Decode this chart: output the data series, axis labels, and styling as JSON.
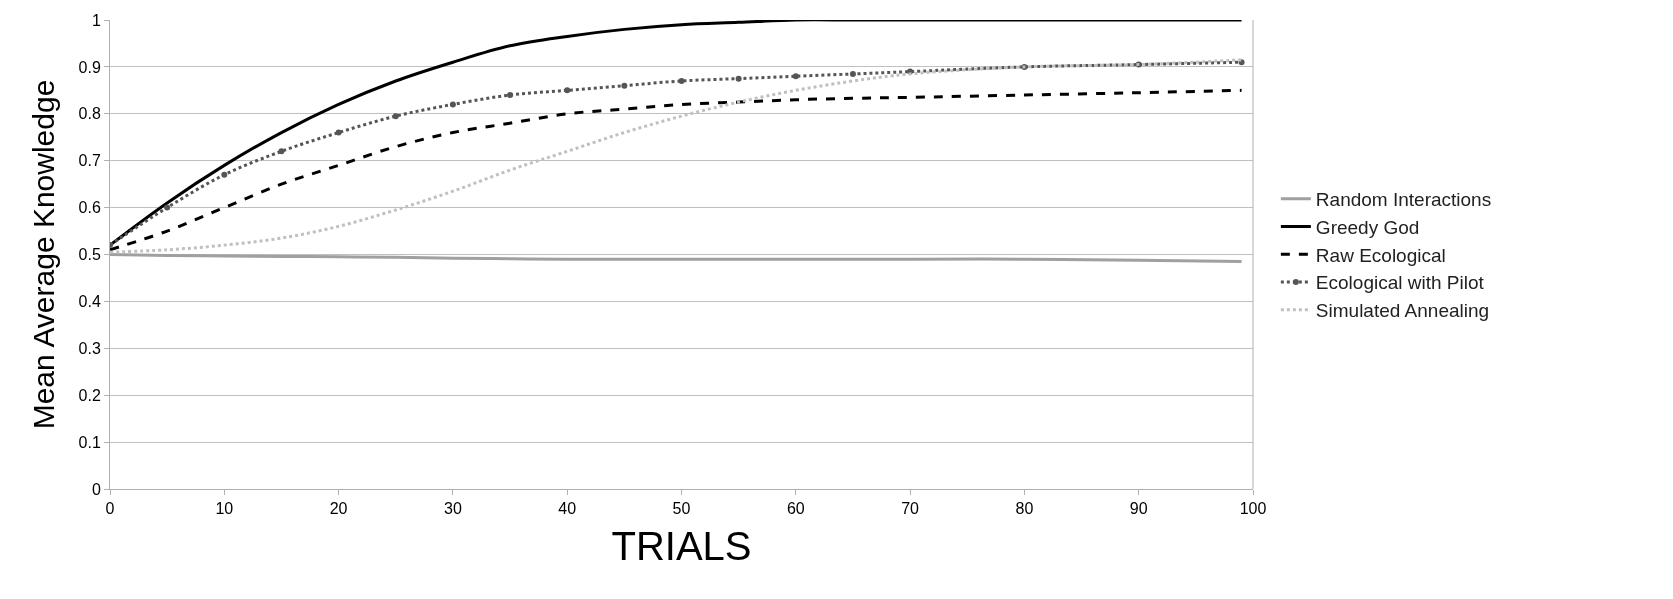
{
  "chart_data": {
    "type": "line",
    "xlabel": "TRIALS",
    "ylabel": "Mean Average Knowledge",
    "x": [
      0,
      5,
      10,
      15,
      20,
      25,
      30,
      35,
      40,
      45,
      50,
      55,
      60,
      65,
      70,
      80,
      90,
      99
    ],
    "series": [
      {
        "name": "Random Interactions",
        "color": "#a0a0a0",
        "line_style": "solid",
        "values": [
          0.5,
          0.498,
          0.497,
          0.496,
          0.495,
          0.494,
          0.492,
          0.491,
          0.49,
          0.49,
          0.49,
          0.49,
          0.49,
          0.49,
          0.49,
          0.49,
          0.488,
          0.485
        ]
      },
      {
        "name": "Greedy God",
        "color": "#000000",
        "line_style": "solid",
        "values": [
          0.52,
          0.61,
          0.69,
          0.76,
          0.82,
          0.87,
          0.91,
          0.945,
          0.965,
          0.98,
          0.99,
          0.995,
          1.0,
          1.0,
          1.0,
          1.0,
          1.0,
          1.0
        ]
      },
      {
        "name": "Raw Ecological",
        "color": "#000000",
        "line_style": "dashed",
        "values": [
          0.51,
          0.55,
          0.6,
          0.65,
          0.69,
          0.73,
          0.76,
          0.78,
          0.8,
          0.81,
          0.82,
          0.825,
          0.83,
          0.833,
          0.835,
          0.84,
          0.845,
          0.85
        ]
      },
      {
        "name": "Ecological with Pilot",
        "color": "#555555",
        "line_style": "dotted",
        "marker": "circle",
        "values": [
          0.52,
          0.6,
          0.67,
          0.72,
          0.76,
          0.795,
          0.82,
          0.84,
          0.85,
          0.86,
          0.87,
          0.875,
          0.88,
          0.885,
          0.89,
          0.9,
          0.905,
          0.91
        ]
      },
      {
        "name": "Simulated Annealing",
        "color": "#c0c0c0",
        "line_style": "dotted",
        "values": [
          0.505,
          0.51,
          0.52,
          0.535,
          0.56,
          0.595,
          0.635,
          0.68,
          0.72,
          0.76,
          0.795,
          0.825,
          0.85,
          0.87,
          0.885,
          0.9,
          0.905,
          0.915
        ]
      }
    ],
    "xlim": [
      0,
      100
    ],
    "xticks": [
      0,
      10,
      20,
      30,
      40,
      50,
      60,
      70,
      80,
      90,
      100
    ],
    "ylim": [
      0,
      1
    ],
    "yticks": [
      0,
      0.1,
      0.2,
      0.3,
      0.4,
      0.5,
      0.6,
      0.7,
      0.8,
      0.9,
      1
    ],
    "grid": "y",
    "legend": "right"
  }
}
